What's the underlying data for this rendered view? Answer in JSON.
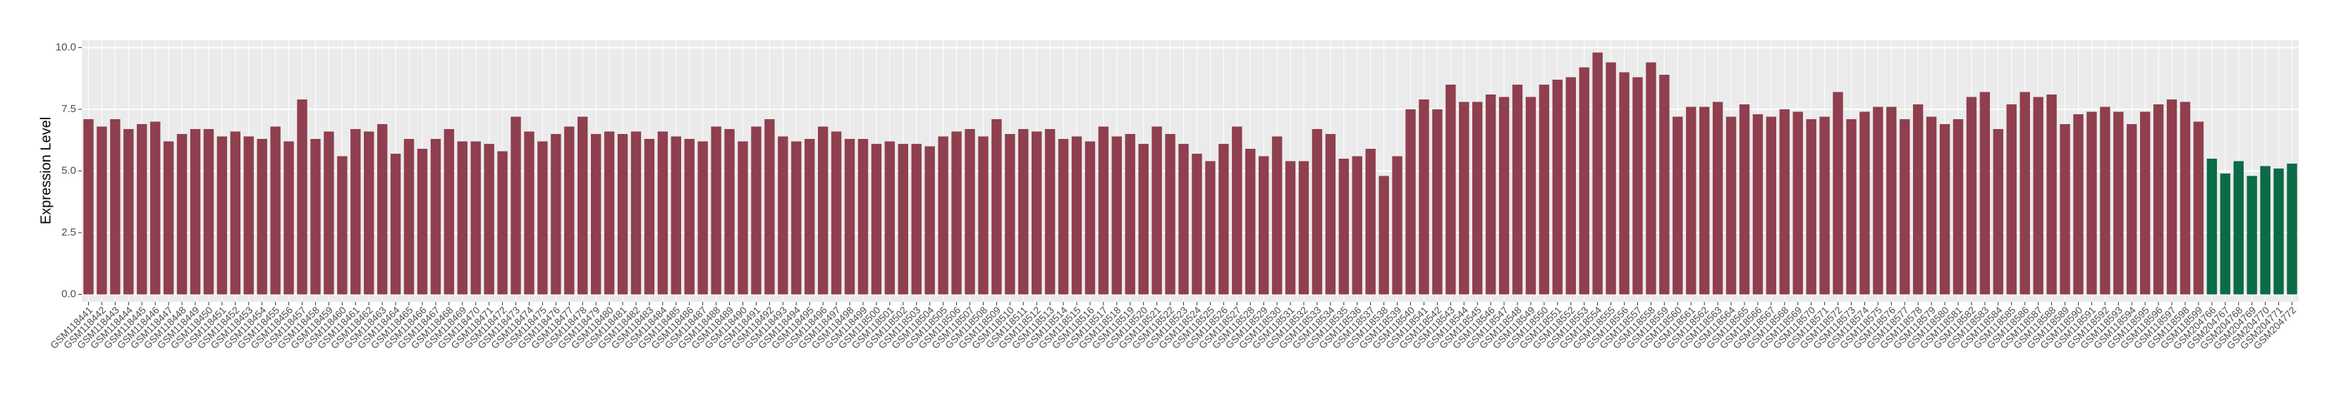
{
  "chart_data": {
    "type": "bar",
    "ylabel": "Expression Level",
    "categories": [
      "GSM118441",
      "GSM118442",
      "GSM118443",
      "GSM118444",
      "GSM118445",
      "GSM118446",
      "GSM118447",
      "GSM118448",
      "GSM118449",
      "GSM118450",
      "GSM118451",
      "GSM118452",
      "GSM118453",
      "GSM118454",
      "GSM118455",
      "GSM118456",
      "GSM118457",
      "GSM118458",
      "GSM118459",
      "GSM118460",
      "GSM118461",
      "GSM118462",
      "GSM118463",
      "GSM118464",
      "GSM118465",
      "GSM118466",
      "GSM118467",
      "GSM118468",
      "GSM118469",
      "GSM118470",
      "GSM118471",
      "GSM118472",
      "GSM118473",
      "GSM118474",
      "GSM118475",
      "GSM118476",
      "GSM118477",
      "GSM118478",
      "GSM118479",
      "GSM118480",
      "GSM118481",
      "GSM118482",
      "GSM118483",
      "GSM118484",
      "GSM118485",
      "GSM118486",
      "GSM118487",
      "GSM118488",
      "GSM118489",
      "GSM118490",
      "GSM118491",
      "GSM118492",
      "GSM118493",
      "GSM118494",
      "GSM118495",
      "GSM118496",
      "GSM118497",
      "GSM118498",
      "GSM118499",
      "GSM118500",
      "GSM118501",
      "GSM118502",
      "GSM118503",
      "GSM118504",
      "GSM118505",
      "GSM118506",
      "GSM118507",
      "GSM118508",
      "GSM118509",
      "GSM118510",
      "GSM118511",
      "GSM118512",
      "GSM118513",
      "GSM118514",
      "GSM118515",
      "GSM118516",
      "GSM118517",
      "GSM118518",
      "GSM118519",
      "GSM118520",
      "GSM118521",
      "GSM118522",
      "GSM118523",
      "GSM118524",
      "GSM118525",
      "GSM118526",
      "GSM118527",
      "GSM118528",
      "GSM118529",
      "GSM118530",
      "GSM118531",
      "GSM118532",
      "GSM118533",
      "GSM118534",
      "GSM118535",
      "GSM118536",
      "GSM118537",
      "GSM118538",
      "GSM118539",
      "GSM118540",
      "GSM118541",
      "GSM118542",
      "GSM118543",
      "GSM118544",
      "GSM118545",
      "GSM118546",
      "GSM118547",
      "GSM118548",
      "GSM118549",
      "GSM118550",
      "GSM118551",
      "GSM118552",
      "GSM118553",
      "GSM118554",
      "GSM118555",
      "GSM118556",
      "GSM118557",
      "GSM118558",
      "GSM118559",
      "GSM118560",
      "GSM118561",
      "GSM118562",
      "GSM118563",
      "GSM118564",
      "GSM118565",
      "GSM118566",
      "GSM118567",
      "GSM118568",
      "GSM118569",
      "GSM118570",
      "GSM118571",
      "GSM118572",
      "GSM118573",
      "GSM118574",
      "GSM118575",
      "GSM118576",
      "GSM118577",
      "GSM118578",
      "GSM118579",
      "GSM118580",
      "GSM118581",
      "GSM118582",
      "GSM118583",
      "GSM118584",
      "GSM118585",
      "GSM118586",
      "GSM118587",
      "GSM118588",
      "GSM118589",
      "GSM118590",
      "GSM118591",
      "GSM118592",
      "GSM118593",
      "GSM118594",
      "GSM118595",
      "GSM118596",
      "GSM118597",
      "GSM118598",
      "GSM118599",
      "GSM204766",
      "GSM204767",
      "GSM204768",
      "GSM204769",
      "GSM204770",
      "GSM204771",
      "GSM204772"
    ],
    "values": [
      7.1,
      6.8,
      7.1,
      6.7,
      6.9,
      7.0,
      6.2,
      6.5,
      6.7,
      6.7,
      6.4,
      6.6,
      6.4,
      6.3,
      6.8,
      6.2,
      7.9,
      6.3,
      6.6,
      5.6,
      6.7,
      6.6,
      6.9,
      5.7,
      6.3,
      5.9,
      6.3,
      6.7,
      6.2,
      6.2,
      6.1,
      5.8,
      7.2,
      6.6,
      6.2,
      6.5,
      6.8,
      7.2,
      6.5,
      6.6,
      6.5,
      6.6,
      6.3,
      6.6,
      6.4,
      6.3,
      6.2,
      6.8,
      6.7,
      6.2,
      6.8,
      7.1,
      6.4,
      6.2,
      6.3,
      6.8,
      6.6,
      6.3,
      6.3,
      6.1,
      6.2,
      6.1,
      6.1,
      6.0,
      6.4,
      6.6,
      6.7,
      6.4,
      7.1,
      6.5,
      6.7,
      6.6,
      6.7,
      6.3,
      6.4,
      6.2,
      6.8,
      6.4,
      6.5,
      6.1,
      6.8,
      6.5,
      6.1,
      5.7,
      5.4,
      6.1,
      6.8,
      5.9,
      5.6,
      6.4,
      5.4,
      5.4,
      6.7,
      6.5,
      5.5,
      5.6,
      5.9,
      4.8,
      5.6,
      7.5,
      7.9,
      7.5,
      8.5,
      7.8,
      7.8,
      8.1,
      8.0,
      8.5,
      8.0,
      8.5,
      8.7,
      8.8,
      9.2,
      9.8,
      9.4,
      9.0,
      8.8,
      9.4,
      8.9,
      7.2,
      7.6,
      7.6,
      7.8,
      7.2,
      7.7,
      7.3,
      7.2,
      7.5,
      7.4,
      7.1,
      7.2,
      8.2,
      7.1,
      7.4,
      7.6,
      7.6,
      7.1,
      7.7,
      7.2,
      6.9,
      7.1,
      8.0,
      8.2,
      6.7,
      7.7,
      8.2,
      8.0,
      8.1,
      6.9,
      7.3,
      7.4,
      7.6,
      7.4,
      6.9,
      7.4,
      7.7,
      7.9,
      7.8,
      7.0,
      5.5,
      4.9,
      5.4,
      4.8,
      5.2,
      5.1,
      5.3
    ],
    "colors": [
      "#8f3f4e",
      "#8f3f4e",
      "#8f3f4e",
      "#8f3f4e",
      "#8f3f4e",
      "#8f3f4e",
      "#8f3f4e",
      "#8f3f4e",
      "#8f3f4e",
      "#8f3f4e",
      "#8f3f4e",
      "#8f3f4e",
      "#8f3f4e",
      "#8f3f4e",
      "#8f3f4e",
      "#8f3f4e",
      "#8f3f4e",
      "#8f3f4e",
      "#8f3f4e",
      "#8f3f4e",
      "#8f3f4e",
      "#8f3f4e",
      "#8f3f4e",
      "#8f3f4e",
      "#8f3f4e",
      "#8f3f4e",
      "#8f3f4e",
      "#8f3f4e",
      "#8f3f4e",
      "#8f3f4e",
      "#8f3f4e",
      "#8f3f4e",
      "#8f3f4e",
      "#8f3f4e",
      "#8f3f4e",
      "#8f3f4e",
      "#8f3f4e",
      "#8f3f4e",
      "#8f3f4e",
      "#8f3f4e",
      "#8f3f4e",
      "#8f3f4e",
      "#8f3f4e",
      "#8f3f4e",
      "#8f3f4e",
      "#8f3f4e",
      "#8f3f4e",
      "#8f3f4e",
      "#8f3f4e",
      "#8f3f4e",
      "#8f3f4e",
      "#8f3f4e",
      "#8f3f4e",
      "#8f3f4e",
      "#8f3f4e",
      "#8f3f4e",
      "#8f3f4e",
      "#8f3f4e",
      "#8f3f4e",
      "#8f3f4e",
      "#8f3f4e",
      "#8f3f4e",
      "#8f3f4e",
      "#8f3f4e",
      "#8f3f4e",
      "#8f3f4e",
      "#8f3f4e",
      "#8f3f4e",
      "#8f3f4e",
      "#8f3f4e",
      "#8f3f4e",
      "#8f3f4e",
      "#8f3f4e",
      "#8f3f4e",
      "#8f3f4e",
      "#8f3f4e",
      "#8f3f4e",
      "#8f3f4e",
      "#8f3f4e",
      "#8f3f4e",
      "#8f3f4e",
      "#8f3f4e",
      "#8f3f4e",
      "#8f3f4e",
      "#8f3f4e",
      "#8f3f4e",
      "#8f3f4e",
      "#8f3f4e",
      "#8f3f4e",
      "#8f3f4e",
      "#8f3f4e",
      "#8f3f4e",
      "#8f3f4e",
      "#8f3f4e",
      "#8f3f4e",
      "#8f3f4e",
      "#8f3f4e",
      "#8f3f4e",
      "#8f3f4e",
      "#8f3f4e",
      "#8f3f4e",
      "#8f3f4e",
      "#8f3f4e",
      "#8f3f4e",
      "#8f3f4e",
      "#8f3f4e",
      "#8f3f4e",
      "#8f3f4e",
      "#8f3f4e",
      "#8f3f4e",
      "#8f3f4e",
      "#8f3f4e",
      "#8f3f4e",
      "#8f3f4e",
      "#8f3f4e",
      "#8f3f4e",
      "#8f3f4e",
      "#8f3f4e",
      "#8f3f4e",
      "#8f3f4e",
      "#8f3f4e",
      "#8f3f4e",
      "#8f3f4e",
      "#8f3f4e",
      "#8f3f4e",
      "#8f3f4e",
      "#8f3f4e",
      "#8f3f4e",
      "#8f3f4e",
      "#8f3f4e",
      "#8f3f4e",
      "#8f3f4e",
      "#8f3f4e",
      "#8f3f4e",
      "#8f3f4e",
      "#8f3f4e",
      "#8f3f4e",
      "#8f3f4e",
      "#8f3f4e",
      "#8f3f4e",
      "#8f3f4e",
      "#8f3f4e",
      "#8f3f4e",
      "#8f3f4e",
      "#8f3f4e",
      "#8f3f4e",
      "#8f3f4e",
      "#8f3f4e",
      "#8f3f4e",
      "#8f3f4e",
      "#8f3f4e",
      "#8f3f4e",
      "#8f3f4e",
      "#8f3f4e",
      "#8f3f4e",
      "#8f3f4e",
      "#8f3f4e",
      "#8f3f4e",
      "#8f3f4e",
      "#0b6b47",
      "#0b6b47",
      "#0b6b47",
      "#0b6b47",
      "#0b6b47",
      "#0b6b47",
      "#0b6b47"
    ],
    "ylim": [
      -0.3,
      10.3
    ],
    "yticks": [
      {
        "value": 0,
        "label": "0.0"
      },
      {
        "value": 2.5,
        "label": "2.5"
      },
      {
        "value": 5,
        "label": "5.0"
      },
      {
        "value": 7.5,
        "label": "7.5"
      },
      {
        "value": 10,
        "label": "10.0"
      }
    ],
    "grid": true
  }
}
